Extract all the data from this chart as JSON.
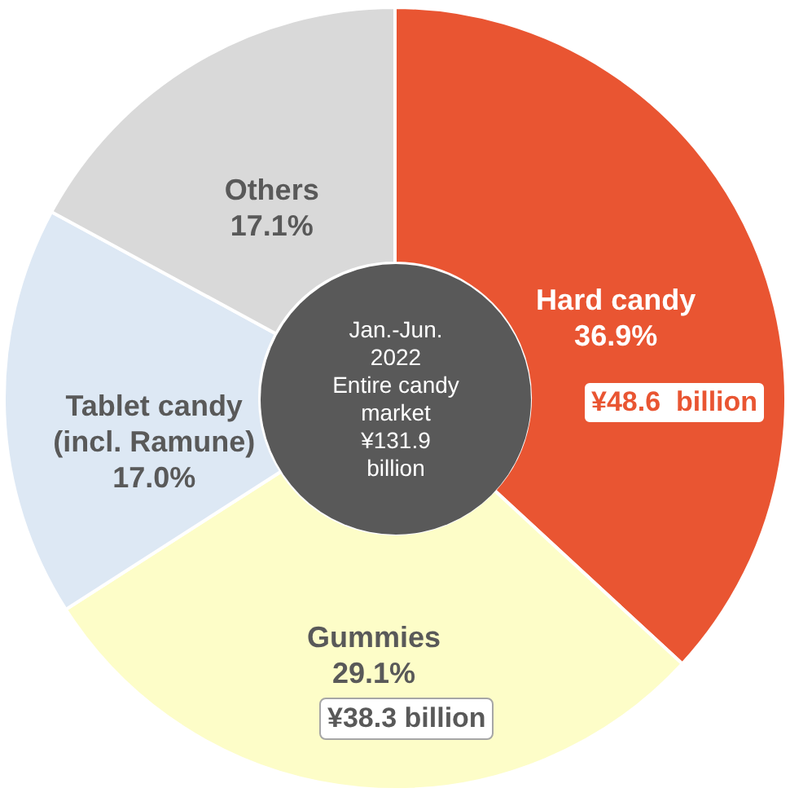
{
  "chart_data": {
    "type": "donut",
    "categories": [
      "Hard candy",
      "Gummies",
      "Tablet candy\n(incl. Ramune)",
      "Others"
    ],
    "values": [
      36.9,
      29.1,
      17.0,
      17.1
    ],
    "value_labels": [
      "36.9%",
      "29.1%",
      "17.0%",
      "17.1%"
    ],
    "colors": [
      "#e95532",
      "#fdfdc8",
      "#dde8f4",
      "#d9d9d9"
    ],
    "annotations": [
      "Jan.-Jun.\n2022\nEntire candy\nmarket\n¥131.9\nbillion",
      "¥48.6  billion",
      "¥38.3 billion"
    ]
  }
}
